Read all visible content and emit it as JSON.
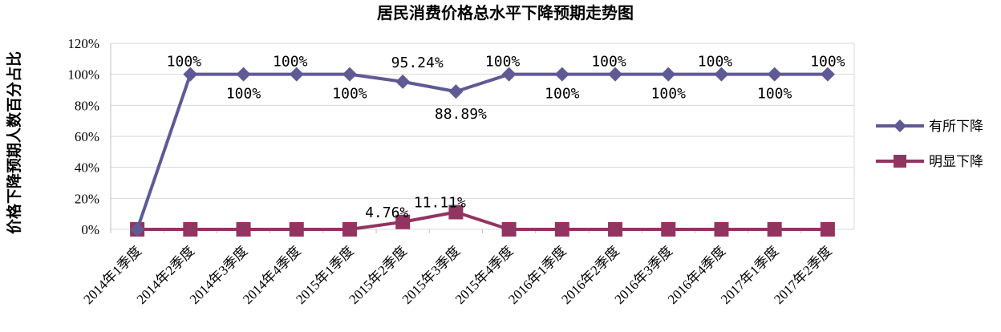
{
  "chart_data": {
    "type": "line",
    "title": "居民消费价格总水平下降预期走势图",
    "ylabel": "价格下降预期人数百分占比",
    "xlabel": "",
    "ylim": [
      0,
      120
    ],
    "yticks": [
      "0%",
      "20%",
      "40%",
      "60%",
      "80%",
      "100%",
      "120%"
    ],
    "categories": [
      "2014年1季度",
      "2014年2季度",
      "2014年3季度",
      "2014年4季度",
      "2015年1季度",
      "2015年2季度",
      "2015年3季度",
      "2015年4季度",
      "2016年1季度",
      "2016年2季度",
      "2016年3季度",
      "2016年4季度",
      "2017年1季度",
      "2017年2季度"
    ],
    "series": [
      {
        "name": "有所下降",
        "color": "#5F5A94",
        "marker": "diamond",
        "values": [
          0,
          100,
          100,
          100,
          100,
          95.24,
          88.89,
          100,
          100,
          100,
          100,
          100,
          100,
          100
        ],
        "labels": [
          "",
          "100%",
          "100%",
          "100%",
          "100%",
          "95.24%",
          "88.89%",
          "100%",
          "100%",
          "100%",
          "100%",
          "100%",
          "100%",
          "100%"
        ]
      },
      {
        "name": "明显下降",
        "color": "#923460",
        "marker": "square",
        "values": [
          0,
          0,
          0,
          0,
          0,
          4.76,
          11.11,
          0,
          0,
          0,
          0,
          0,
          0,
          0
        ],
        "labels": [
          "",
          "",
          "",
          "",
          "",
          "4.76%",
          "11.11%",
          "",
          "",
          "",
          "",
          "",
          "",
          ""
        ]
      }
    ],
    "grid": true,
    "legend": "right"
  }
}
